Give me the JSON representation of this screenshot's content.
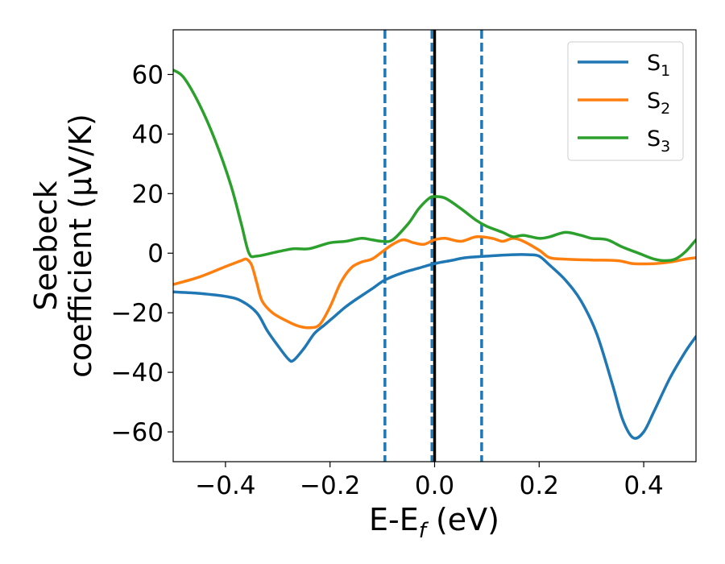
{
  "chart_data": {
    "type": "line",
    "title": "",
    "xlabel": "E-E",
    "xlabel_sub": "f",
    "xlabel_unit": " (eV)",
    "ylabel_line1": "Seebeck",
    "ylabel_line2": "coefficient  (μV/K)",
    "xlim": [
      -0.5,
      0.5
    ],
    "ylim": [
      -70,
      75
    ],
    "xticks": [
      -0.4,
      -0.2,
      0.0,
      0.2,
      0.4
    ],
    "xtick_labels": [
      "−0.4",
      "−0.2",
      "0.0",
      "0.2",
      "0.4"
    ],
    "yticks": [
      -60,
      -40,
      -20,
      0,
      20,
      40,
      60
    ],
    "ytick_labels": [
      "−60",
      "−40",
      "−20",
      "0",
      "20",
      "40",
      "60"
    ],
    "legend_position": "top-right",
    "vlines": [
      {
        "x": 0.0,
        "style": "solid",
        "color": "#000000"
      },
      {
        "x": -0.095,
        "style": "dashed",
        "color": "#1f77b4"
      },
      {
        "x": -0.005,
        "style": "dashed",
        "color": "#1f77b4"
      },
      {
        "x": 0.09,
        "style": "dashed",
        "color": "#1f77b4"
      }
    ],
    "series": [
      {
        "name": "S",
        "sub": "1",
        "color": "#1f77b4",
        "points": [
          [
            -0.5,
            -13
          ],
          [
            -0.45,
            -13.5
          ],
          [
            -0.4,
            -14.5
          ],
          [
            -0.37,
            -16
          ],
          [
            -0.34,
            -20
          ],
          [
            -0.32,
            -26
          ],
          [
            -0.3,
            -31
          ],
          [
            -0.28,
            -35.5
          ],
          [
            -0.27,
            -36
          ],
          [
            -0.25,
            -32
          ],
          [
            -0.23,
            -27
          ],
          [
            -0.21,
            -24
          ],
          [
            -0.19,
            -21
          ],
          [
            -0.17,
            -18
          ],
          [
            -0.15,
            -15.5
          ],
          [
            -0.12,
            -12
          ],
          [
            -0.095,
            -9
          ],
          [
            -0.06,
            -6.5
          ],
          [
            -0.03,
            -5
          ],
          [
            0.0,
            -3.5
          ],
          [
            0.03,
            -2.5
          ],
          [
            0.06,
            -1.5
          ],
          [
            0.1,
            -1
          ],
          [
            0.15,
            -0.5
          ],
          [
            0.18,
            -0.5
          ],
          [
            0.2,
            -1
          ],
          [
            0.22,
            -4
          ],
          [
            0.25,
            -9
          ],
          [
            0.28,
            -16
          ],
          [
            0.31,
            -27
          ],
          [
            0.34,
            -44
          ],
          [
            0.36,
            -56
          ],
          [
            0.38,
            -62
          ],
          [
            0.4,
            -60
          ],
          [
            0.42,
            -53
          ],
          [
            0.45,
            -42
          ],
          [
            0.48,
            -33
          ],
          [
            0.5,
            -28
          ]
        ]
      },
      {
        "name": "S",
        "sub": "2",
        "color": "#ff7f0e",
        "points": [
          [
            -0.5,
            -10.5
          ],
          [
            -0.45,
            -8
          ],
          [
            -0.4,
            -4.5
          ],
          [
            -0.37,
            -2.5
          ],
          [
            -0.36,
            -2
          ],
          [
            -0.35,
            -4
          ],
          [
            -0.34,
            -10
          ],
          [
            -0.33,
            -16
          ],
          [
            -0.31,
            -20
          ],
          [
            -0.28,
            -23
          ],
          [
            -0.26,
            -24.5
          ],
          [
            -0.24,
            -25
          ],
          [
            -0.22,
            -24
          ],
          [
            -0.2,
            -18
          ],
          [
            -0.18,
            -10
          ],
          [
            -0.16,
            -5
          ],
          [
            -0.14,
            -3
          ],
          [
            -0.12,
            -2
          ],
          [
            -0.1,
            0.5
          ],
          [
            -0.08,
            3
          ],
          [
            -0.06,
            4.5
          ],
          [
            -0.04,
            3.5
          ],
          [
            -0.02,
            3
          ],
          [
            0.0,
            4.5
          ],
          [
            0.02,
            5
          ],
          [
            0.05,
            4
          ],
          [
            0.08,
            5.5
          ],
          [
            0.11,
            5
          ],
          [
            0.13,
            4
          ],
          [
            0.15,
            5
          ],
          [
            0.17,
            4
          ],
          [
            0.2,
            1
          ],
          [
            0.22,
            -1.5
          ],
          [
            0.25,
            -2
          ],
          [
            0.3,
            -2.3
          ],
          [
            0.35,
            -2.5
          ],
          [
            0.38,
            -3.5
          ],
          [
            0.42,
            -3.5
          ],
          [
            0.45,
            -3
          ],
          [
            0.48,
            -2
          ],
          [
            0.5,
            -1.5
          ]
        ]
      },
      {
        "name": "S",
        "sub": "3",
        "color": "#2ca02c",
        "points": [
          [
            -0.5,
            61.5
          ],
          [
            -0.48,
            59
          ],
          [
            -0.45,
            50
          ],
          [
            -0.42,
            38
          ],
          [
            -0.39,
            23
          ],
          [
            -0.37,
            10
          ],
          [
            -0.355,
            0
          ],
          [
            -0.34,
            -1
          ],
          [
            -0.3,
            0.5
          ],
          [
            -0.27,
            1.5
          ],
          [
            -0.24,
            1.5
          ],
          [
            -0.2,
            3.5
          ],
          [
            -0.17,
            4
          ],
          [
            -0.14,
            5
          ],
          [
            -0.12,
            4.5
          ],
          [
            -0.1,
            4
          ],
          [
            -0.08,
            4.5
          ],
          [
            -0.05,
            10
          ],
          [
            -0.03,
            15
          ],
          [
            -0.01,
            18.5
          ],
          [
            0.0,
            19
          ],
          [
            0.02,
            18.5
          ],
          [
            0.05,
            15
          ],
          [
            0.08,
            11
          ],
          [
            0.1,
            9
          ],
          [
            0.13,
            7
          ],
          [
            0.15,
            5.5
          ],
          [
            0.17,
            6
          ],
          [
            0.2,
            5
          ],
          [
            0.22,
            5.5
          ],
          [
            0.25,
            7
          ],
          [
            0.28,
            6
          ],
          [
            0.3,
            5
          ],
          [
            0.33,
            4.5
          ],
          [
            0.36,
            2
          ],
          [
            0.39,
            0
          ],
          [
            0.42,
            -2
          ],
          [
            0.44,
            -2.5
          ],
          [
            0.46,
            -2
          ],
          [
            0.48,
            0.5
          ],
          [
            0.5,
            4.5
          ]
        ]
      }
    ]
  }
}
